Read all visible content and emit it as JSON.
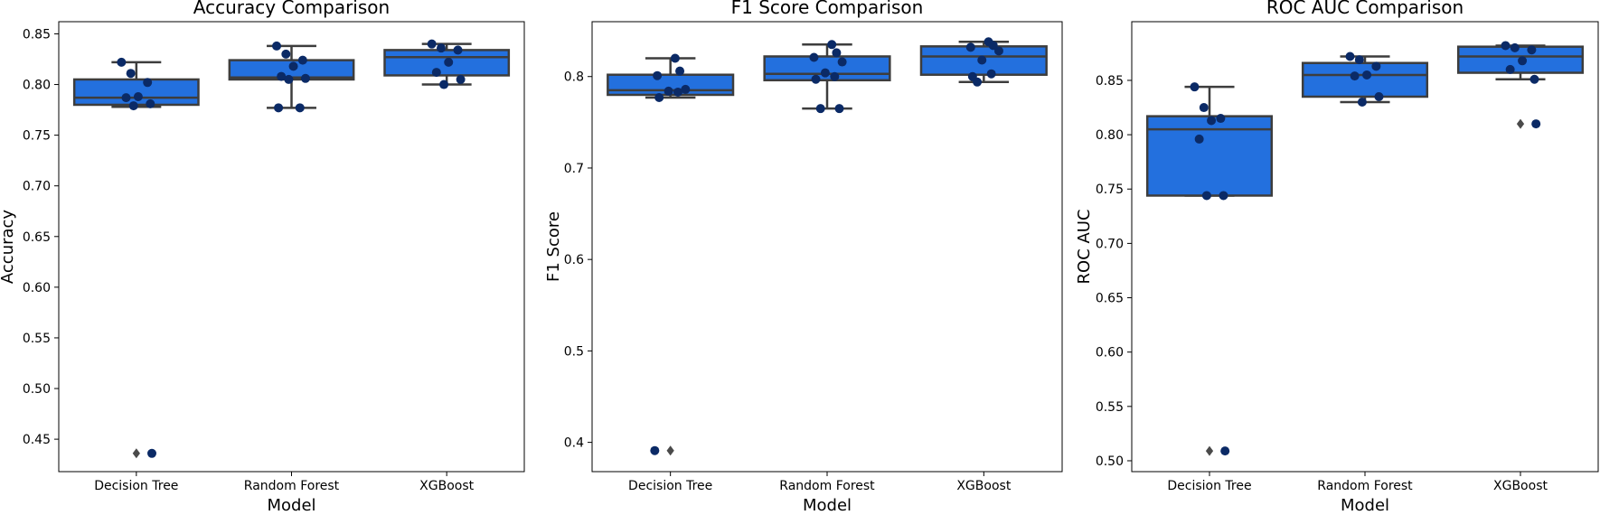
{
  "colors": {
    "box_fill": "#2370de",
    "box_edge": "#3d3d3d",
    "point": "#0b2a66",
    "outlier": "#4a4a4a"
  },
  "chart_data": [
    {
      "type": "box",
      "title": "Accuracy Comparison",
      "xlabel": "Model",
      "ylabel": "Accuracy",
      "categories": [
        "Decision Tree",
        "Random Forest",
        "XGBoost"
      ],
      "ylim": [
        0.418,
        0.862
      ],
      "yticks": [
        0.45,
        0.5,
        0.55,
        0.6,
        0.65,
        0.7,
        0.75,
        0.8,
        0.85
      ],
      "ytick_labels": [
        "0.45",
        "0.50",
        "0.55",
        "0.60",
        "0.65",
        "0.70",
        "0.75",
        "0.80",
        "0.85"
      ],
      "boxes": [
        {
          "whisker_low": 0.778,
          "q1": 0.78,
          "median": 0.787,
          "q3": 0.805,
          "whisker_high": 0.822,
          "outliers": [
            0.436
          ]
        },
        {
          "whisker_low": 0.777,
          "q1": 0.805,
          "median": 0.807,
          "q3": 0.824,
          "whisker_high": 0.838,
          "outliers": []
        },
        {
          "whisker_low": 0.8,
          "q1": 0.809,
          "median": 0.827,
          "q3": 0.834,
          "whisker_high": 0.84,
          "outliers": []
        }
      ],
      "points": [
        [
          0.822,
          0.811,
          0.802,
          0.788,
          0.787,
          0.781,
          0.779,
          0.436
        ],
        [
          0.838,
          0.83,
          0.824,
          0.818,
          0.808,
          0.806,
          0.805,
          0.777,
          0.777
        ],
        [
          0.84,
          0.836,
          0.834,
          0.822,
          0.812,
          0.805,
          0.8
        ]
      ]
    },
    {
      "type": "box",
      "title": "F1 Score Comparison",
      "xlabel": "Model",
      "ylabel": "F1 Score",
      "categories": [
        "Decision Tree",
        "Random Forest",
        "XGBoost"
      ],
      "ylim": [
        0.368,
        0.86
      ],
      "yticks": [
        0.4,
        0.5,
        0.6,
        0.7,
        0.8
      ],
      "ytick_labels": [
        "0.4",
        "0.5",
        "0.6",
        "0.7",
        "0.8"
      ],
      "boxes": [
        {
          "whisker_low": 0.777,
          "q1": 0.78,
          "median": 0.785,
          "q3": 0.802,
          "whisker_high": 0.82,
          "outliers": [
            0.391
          ]
        },
        {
          "whisker_low": 0.765,
          "q1": 0.796,
          "median": 0.803,
          "q3": 0.822,
          "whisker_high": 0.835,
          "outliers": []
        },
        {
          "whisker_low": 0.794,
          "q1": 0.802,
          "median": 0.822,
          "q3": 0.833,
          "whisker_high": 0.838,
          "outliers": []
        }
      ],
      "points": [
        [
          0.82,
          0.806,
          0.801,
          0.786,
          0.784,
          0.783,
          0.777,
          0.391
        ],
        [
          0.835,
          0.826,
          0.821,
          0.816,
          0.804,
          0.8,
          0.797,
          0.765,
          0.765
        ],
        [
          0.838,
          0.834,
          0.832,
          0.828,
          0.818,
          0.803,
          0.8,
          0.794
        ]
      ]
    },
    {
      "type": "box",
      "title": "ROC AUC Comparison",
      "xlabel": "Model",
      "ylabel": "ROC AUC",
      "categories": [
        "Decision Tree",
        "Random Forest",
        "XGBoost"
      ],
      "ylim": [
        0.49,
        0.904
      ],
      "yticks": [
        0.5,
        0.55,
        0.6,
        0.65,
        0.7,
        0.75,
        0.8,
        0.85
      ],
      "ytick_labels": [
        "0.50",
        "0.55",
        "0.60",
        "0.65",
        "0.70",
        "0.75",
        "0.80",
        "0.85"
      ],
      "boxes": [
        {
          "whisker_low": 0.744,
          "q1": 0.744,
          "median": 0.805,
          "q3": 0.817,
          "whisker_high": 0.844,
          "outliers": [
            0.509
          ]
        },
        {
          "whisker_low": 0.83,
          "q1": 0.835,
          "median": 0.855,
          "q3": 0.866,
          "whisker_high": 0.872,
          "outliers": []
        },
        {
          "whisker_low": 0.851,
          "q1": 0.857,
          "median": 0.872,
          "q3": 0.881,
          "whisker_high": 0.882,
          "outliers": [
            0.81
          ]
        }
      ],
      "points": [
        [
          0.844,
          0.825,
          0.815,
          0.813,
          0.796,
          0.744,
          0.744,
          0.509
        ],
        [
          0.872,
          0.869,
          0.863,
          0.855,
          0.854,
          0.835,
          0.83
        ],
        [
          0.882,
          0.88,
          0.878,
          0.868,
          0.86,
          0.851,
          0.81
        ]
      ]
    }
  ]
}
